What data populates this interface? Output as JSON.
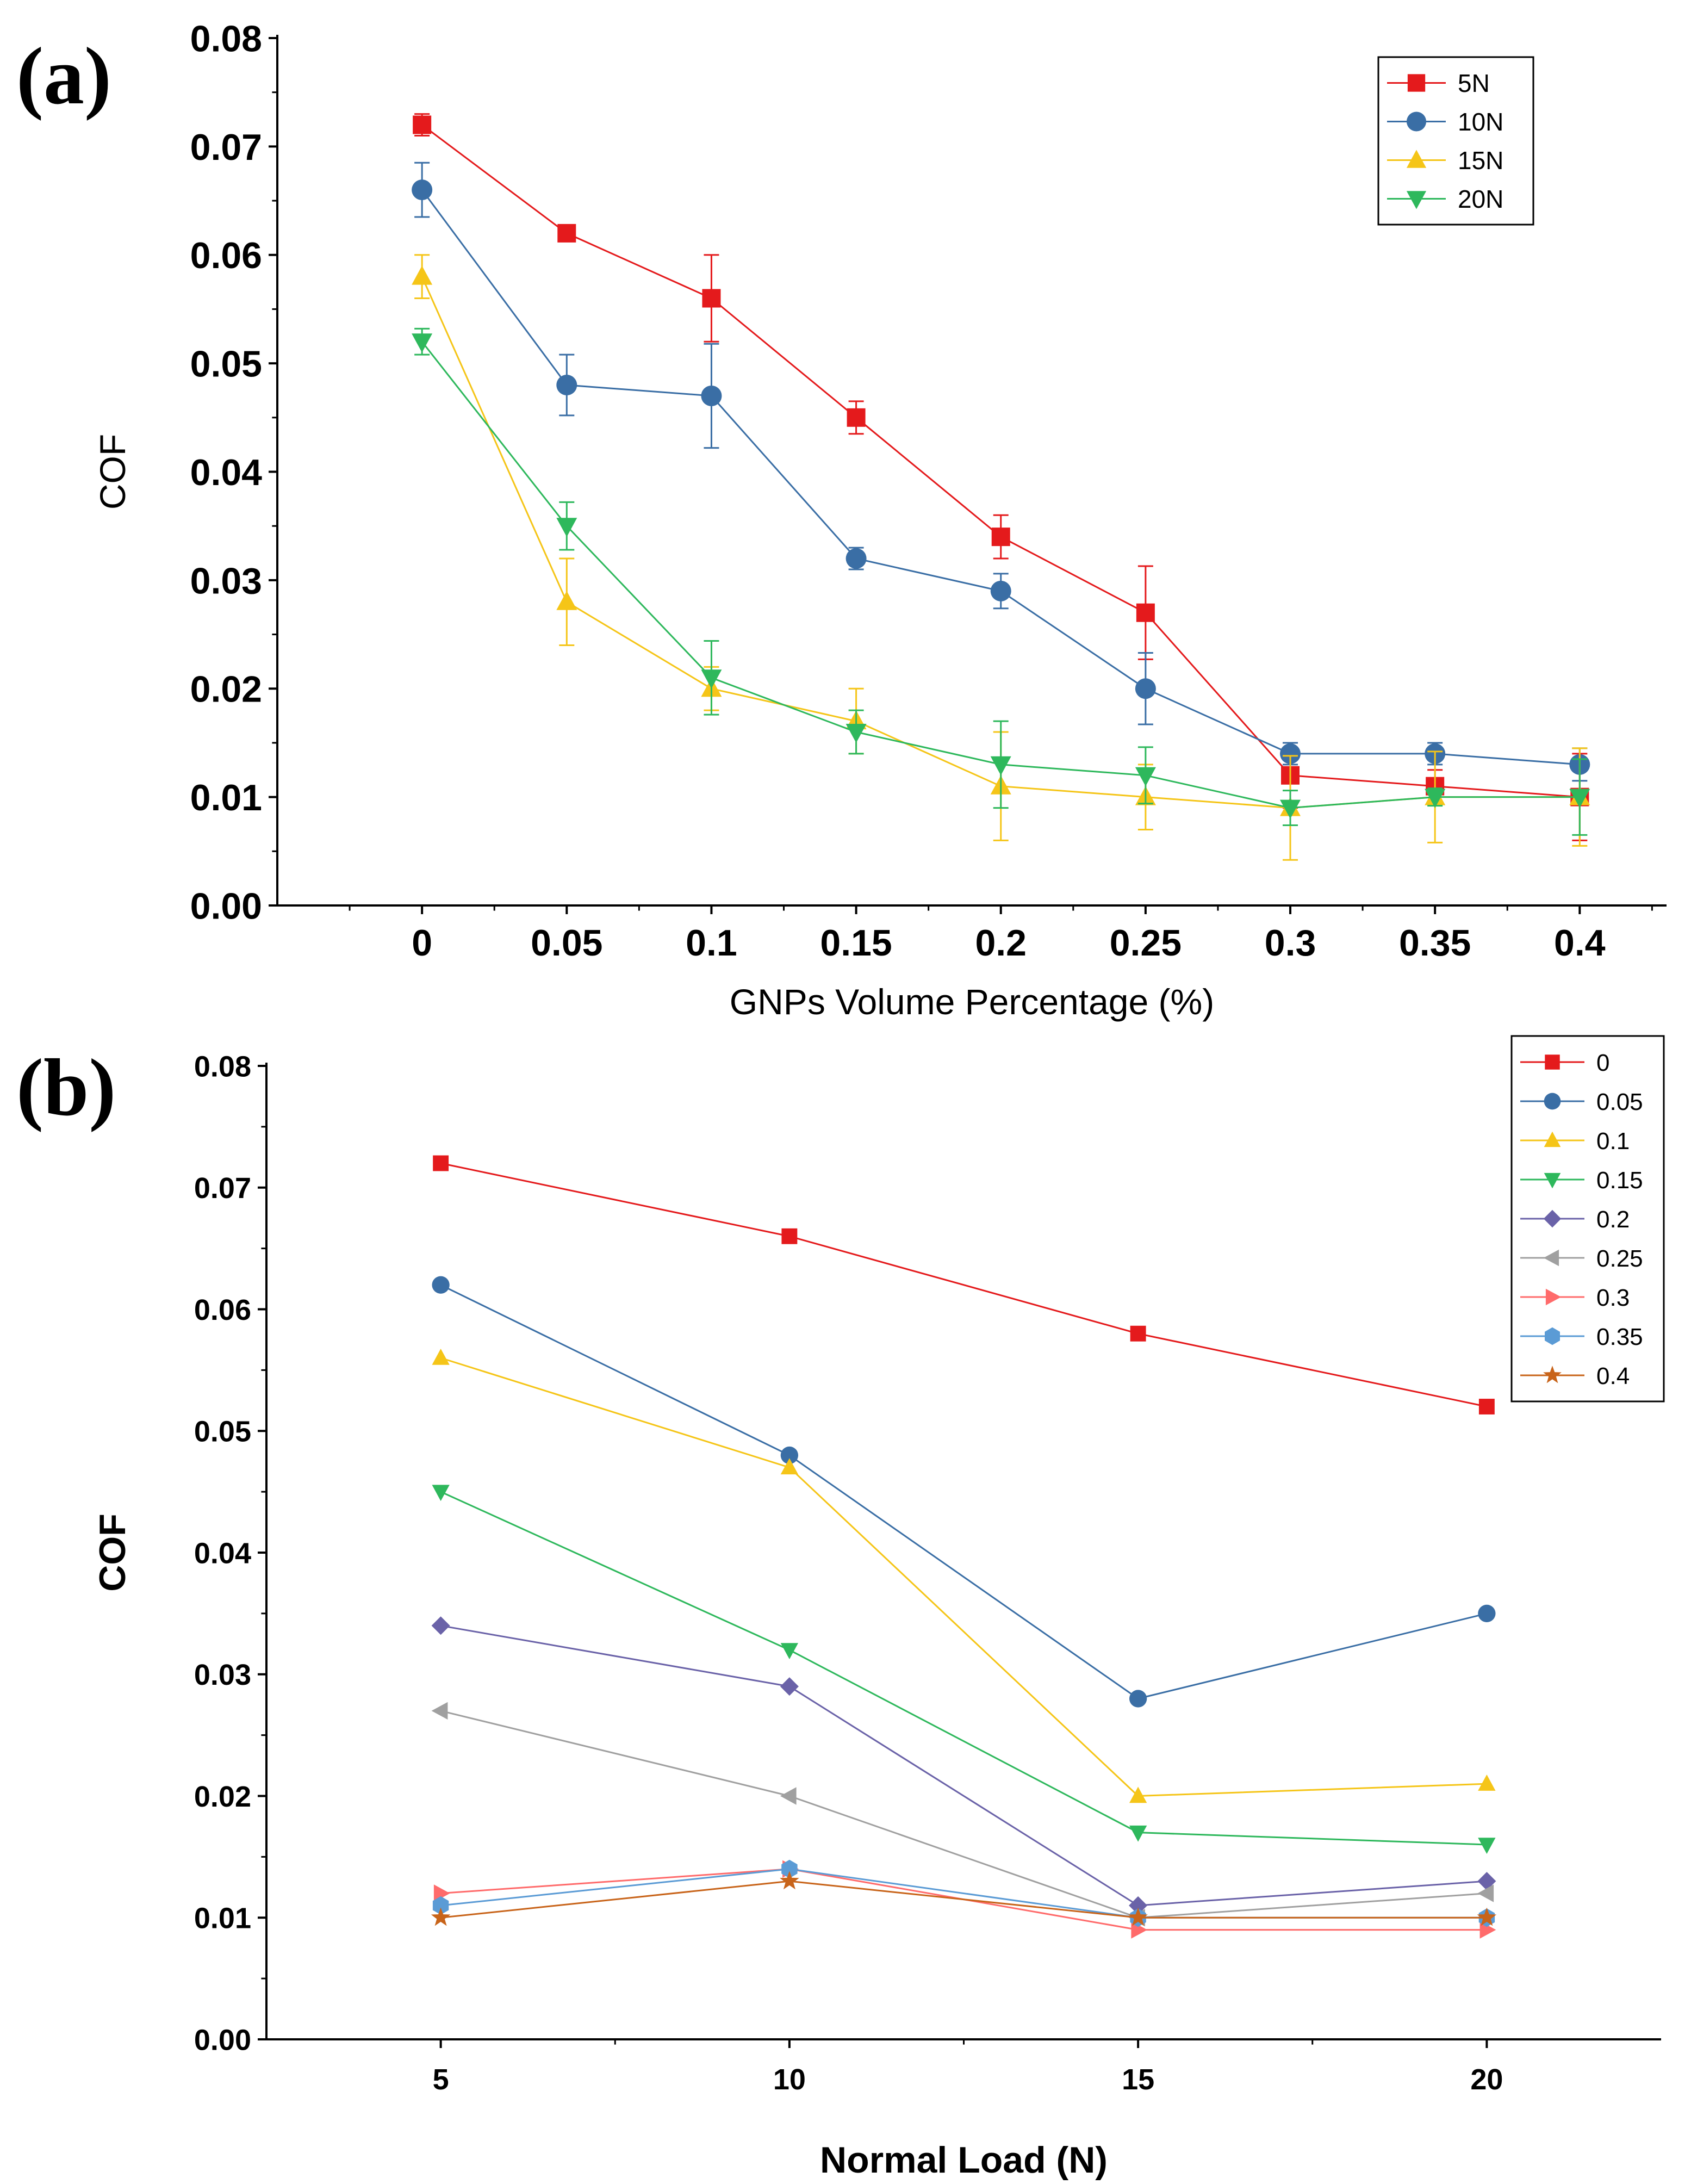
{
  "chart_data": [
    {
      "type": "line",
      "panel_label": "(a)",
      "xlabel": "GNPs Volume Percentage (%)",
      "ylabel": "COF",
      "categories": [
        "0",
        "0.05",
        "0.1",
        "0.15",
        "0.2",
        "0.25",
        "0.3",
        "0.35",
        "0.4"
      ],
      "x": [
        0,
        0.05,
        0.1,
        0.15,
        0.2,
        0.25,
        0.3,
        0.35,
        0.4
      ],
      "xlim": [
        -0.05,
        0.43
      ],
      "ylim": [
        0,
        0.08
      ],
      "yticks": [
        "0.00",
        "0.01",
        "0.02",
        "0.03",
        "0.04",
        "0.05",
        "0.06",
        "0.07",
        "0.08"
      ],
      "legend_position": "top-right",
      "series": [
        {
          "name": "5N",
          "color": "#e41a1c",
          "marker": "square",
          "values": [
            0.072,
            0.062,
            0.056,
            0.045,
            0.034,
            0.027,
            0.012,
            0.011,
            0.01
          ],
          "errors": [
            0.001,
            0.0005,
            0.004,
            0.0015,
            0.002,
            0.0043,
            0.003,
            0.0015,
            0.004
          ]
        },
        {
          "name": "10N",
          "color": "#3a6ea5",
          "marker": "circle",
          "values": [
            0.066,
            0.048,
            0.047,
            0.032,
            0.029,
            0.02,
            0.014,
            0.014,
            0.013
          ],
          "errors": [
            0.0025,
            0.0028,
            0.0048,
            0.001,
            0.0016,
            0.0033,
            0.001,
            0.001,
            0.0015
          ]
        },
        {
          "name": "15N",
          "color": "#f5c518",
          "marker": "triangle-up",
          "values": [
            0.058,
            0.028,
            0.02,
            0.017,
            0.011,
            0.01,
            0.009,
            0.01,
            0.01
          ],
          "errors": [
            0.002,
            0.004,
            0.002,
            0.003,
            0.005,
            0.003,
            0.0048,
            0.0042,
            0.0045
          ]
        },
        {
          "name": "20N",
          "color": "#2eb85c",
          "marker": "triangle-down",
          "values": [
            0.052,
            0.035,
            0.021,
            0.016,
            0.013,
            0.012,
            0.009,
            0.01,
            0.01
          ],
          "errors": [
            0.0012,
            0.0022,
            0.0034,
            0.002,
            0.004,
            0.0026,
            0.0016,
            0.0008,
            0.0035
          ]
        }
      ]
    },
    {
      "type": "line",
      "panel_label": "(b)",
      "xlabel": "Normal Load (N)",
      "ylabel": "COF",
      "categories": [
        "5",
        "10",
        "15",
        "20"
      ],
      "x": [
        5,
        10,
        15,
        20
      ],
      "xlim": [
        2.5,
        22.5
      ],
      "ylim": [
        0,
        0.08
      ],
      "yticks": [
        "0.00",
        "0.01",
        "0.02",
        "0.03",
        "0.04",
        "0.05",
        "0.06",
        "0.07",
        "0.08"
      ],
      "legend_position": "top-right",
      "series": [
        {
          "name": "0",
          "color": "#e41a1c",
          "marker": "square",
          "values": [
            0.072,
            0.066,
            0.058,
            0.052
          ]
        },
        {
          "name": "0.05",
          "color": "#3a6ea5",
          "marker": "circle",
          "values": [
            0.062,
            0.048,
            0.028,
            0.035
          ]
        },
        {
          "name": "0.1",
          "color": "#f5c518",
          "marker": "triangle-up",
          "values": [
            0.056,
            0.047,
            0.02,
            0.021
          ]
        },
        {
          "name": "0.15",
          "color": "#2eb85c",
          "marker": "triangle-down",
          "values": [
            0.045,
            0.032,
            0.017,
            0.016
          ]
        },
        {
          "name": "0.2",
          "color": "#6a62a8",
          "marker": "diamond",
          "values": [
            0.034,
            0.029,
            0.011,
            0.013
          ]
        },
        {
          "name": "0.25",
          "color": "#a0a0a0",
          "marker": "triangle-left",
          "values": [
            0.027,
            0.02,
            0.01,
            0.012
          ]
        },
        {
          "name": "0.3",
          "color": "#ff6b6b",
          "marker": "triangle-right",
          "values": [
            0.012,
            0.014,
            0.009,
            0.009
          ]
        },
        {
          "name": "0.35",
          "color": "#5b9bd5",
          "marker": "hexagon",
          "values": [
            0.011,
            0.014,
            0.01,
            0.01
          ]
        },
        {
          "name": "0.4",
          "color": "#c8641a",
          "marker": "star",
          "values": [
            0.01,
            0.013,
            0.01,
            0.01
          ]
        }
      ]
    }
  ]
}
